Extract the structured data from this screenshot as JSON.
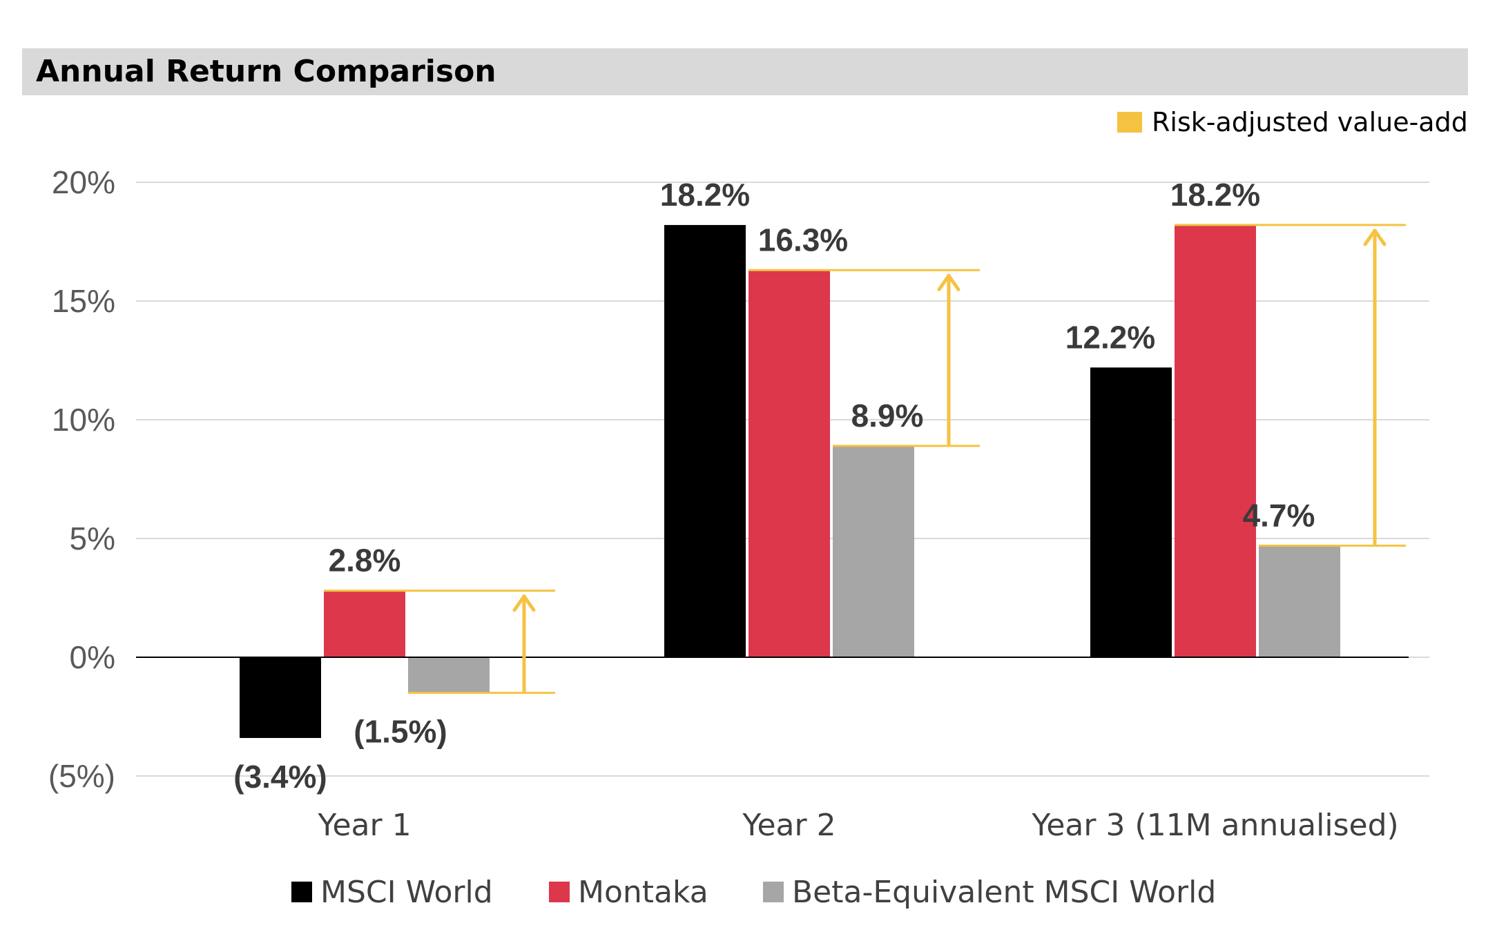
{
  "chart_data": {
    "type": "bar",
    "title": "Annual Return Comparison",
    "categories": [
      "Year 1",
      "Year 2",
      "Year 3 (11M annualised)"
    ],
    "series": [
      {
        "name": "MSCI World",
        "color": "#000000",
        "values": [
          -3.4,
          18.2,
          12.2
        ],
        "labels": [
          "(3.4%)",
          "18.2%",
          "12.2%"
        ]
      },
      {
        "name": "Montaka",
        "color": "#dc374b",
        "values": [
          2.8,
          16.3,
          18.2
        ],
        "labels": [
          "2.8%",
          "16.3%",
          "18.2%"
        ]
      },
      {
        "name": "Beta-Equivalent MSCI World",
        "color": "#a6a6a6",
        "values": [
          -1.5,
          8.9,
          4.7
        ],
        "labels": [
          "(1.5%)",
          "8.9%",
          "4.7%"
        ]
      }
    ],
    "ylim": [
      -5,
      20
    ],
    "yticks": [
      20,
      15,
      10,
      5,
      0,
      -5
    ],
    "ytick_labels": [
      "20%",
      "15%",
      "10%",
      "5%",
      "0%",
      "(5%)"
    ],
    "grid": true,
    "legend_position": "bottom",
    "annotation": {
      "label": "Risk-adjusted value-add",
      "color": "#f5c242",
      "position": "top-right",
      "arrows": [
        {
          "category": "Year 1",
          "from": -1.5,
          "to": 2.8
        },
        {
          "category": "Year 2",
          "from": 8.9,
          "to": 16.3
        },
        {
          "category": "Year 3 (11M annualised)",
          "from": 4.7,
          "to": 18.2
        }
      ]
    }
  }
}
